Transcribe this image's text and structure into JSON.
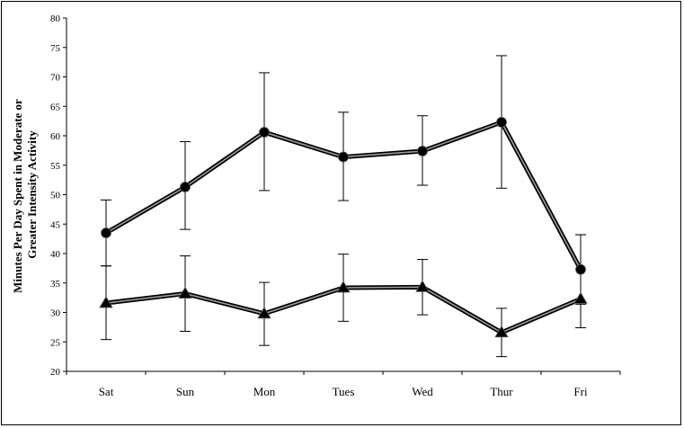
{
  "chart_data": {
    "type": "line",
    "title": "",
    "xlabel": "",
    "ylabel_lines": [
      "Minutes Per Day Spent in Moderate or",
      "Greater Intensity Activity"
    ],
    "categories": [
      "Sat",
      "Sun",
      "Mon",
      "Tues",
      "Wed",
      "Thur",
      "Fri"
    ],
    "ylim": [
      20,
      80
    ],
    "yticks": [
      20,
      25,
      30,
      35,
      40,
      45,
      50,
      55,
      60,
      65,
      70,
      75,
      80
    ],
    "grid": false,
    "legend": "none",
    "series": [
      {
        "marker": "circle",
        "values": [
          43.5,
          51.3,
          60.6,
          56.4,
          57.4,
          62.3,
          37.3
        ],
        "error_low": [
          37.9,
          44.1,
          50.7,
          49.0,
          51.6,
          51.1,
          31.4
        ],
        "error_high": [
          49.1,
          59.0,
          70.7,
          64.0,
          63.4,
          73.6,
          43.2
        ]
      },
      {
        "marker": "triangle",
        "values": [
          31.6,
          33.2,
          29.8,
          34.2,
          34.3,
          26.6,
          32.3
        ],
        "error_low": [
          25.4,
          26.8,
          24.4,
          28.5,
          29.6,
          22.5,
          27.4
        ],
        "error_high": [
          37.9,
          39.6,
          35.1,
          39.9,
          39.0,
          30.7,
          43.2
        ]
      }
    ],
    "colors": {
      "line_outer": "#000000",
      "line_inner": "#9a9a9a",
      "marker": "#000000",
      "error_bar": "#000000"
    }
  }
}
